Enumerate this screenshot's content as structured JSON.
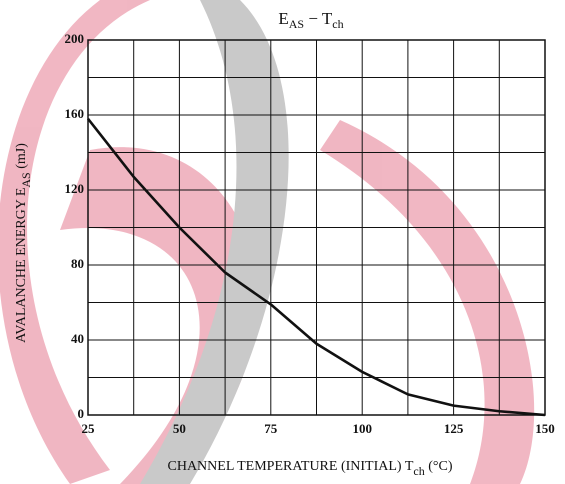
{
  "chart_data": {
    "type": "line",
    "title": [
      {
        "text": "E"
      },
      {
        "text": "AS",
        "sub": true
      },
      {
        "text": " − T"
      },
      {
        "text": "ch",
        "sub": true
      }
    ],
    "x_label": [
      {
        "text": "CHANNEL TEMPERATURE (INITIAL)   T"
      },
      {
        "text": "ch",
        "sub": true
      },
      {
        "text": "   (°C)"
      }
    ],
    "y_label": [
      {
        "text": "AVALANCHE ENERGY   E"
      },
      {
        "text": "AS",
        "sub": true
      },
      {
        "text": "   (mJ)"
      }
    ],
    "x": [
      25,
      37.5,
      50,
      62.5,
      75,
      87.5,
      100,
      112.5,
      125,
      137.5,
      150
    ],
    "values": [
      158,
      127,
      100,
      76,
      59,
      38,
      23,
      11,
      5,
      2,
      0
    ],
    "color": "#111111",
    "xlim": [
      25,
      150
    ],
    "xticks": [
      25,
      50,
      75,
      100,
      125,
      150
    ],
    "ylim": [
      0,
      200
    ],
    "yticks": [
      0,
      40,
      80,
      120,
      160,
      200
    ],
    "grid": true
  }
}
